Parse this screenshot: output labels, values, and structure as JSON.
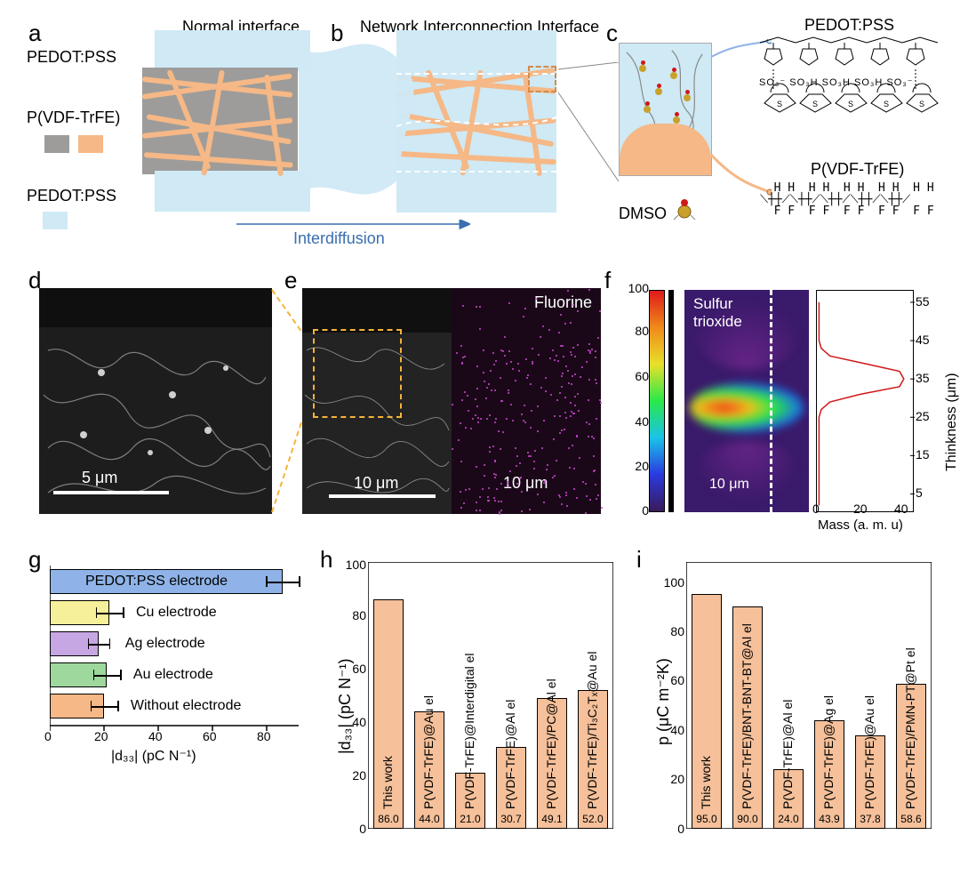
{
  "panels": {
    "a": {
      "letter": "a",
      "title": "Normal interface"
    },
    "b": {
      "letter": "b",
      "title": "Network Interconnection Interface"
    },
    "c": {
      "letter": "c"
    },
    "d": {
      "letter": "d",
      "scalebar": "5 μm"
    },
    "e": {
      "letter": "e",
      "scalebar1": "10 μm",
      "scalebar2": "10 μm",
      "eds_label": "Fluorine"
    },
    "f": {
      "letter": "f",
      "map_label": "Sulfur\ntrioxide",
      "map_scalebar": "10 μm",
      "cbar_ticks": [
        0,
        20,
        40,
        60,
        80,
        100
      ],
      "lp_xlabel": "Mass (a. m. u)",
      "lp_ylabel": "Thinkness (μm)",
      "lp_yticks": [
        5,
        15,
        25,
        35,
        45,
        55
      ],
      "lp_xticks": [
        0,
        20,
        40
      ],
      "lp_xlim": [
        0,
        45
      ],
      "lp_ylim": [
        0,
        58
      ],
      "lp_points": [
        [
          1,
          2
        ],
        [
          1,
          20
        ],
        [
          1,
          25
        ],
        [
          2,
          27
        ],
        [
          6,
          29
        ],
        [
          20,
          31
        ],
        [
          38,
          33
        ],
        [
          40,
          35
        ],
        [
          38,
          37
        ],
        [
          22,
          39
        ],
        [
          6,
          41
        ],
        [
          2,
          43
        ],
        [
          1,
          45
        ],
        [
          1,
          55
        ]
      ]
    },
    "g": {
      "letter": "g",
      "xlabel": "|d₃₃| (pC N⁻¹)",
      "xticks": [
        0,
        20,
        40,
        60,
        80
      ],
      "xlim": [
        0,
        92
      ],
      "bars": [
        {
          "k": "pedot",
          "label": "PEDOT:PSS electrode",
          "value": 86,
          "err": 6,
          "color": "#8fb3e8"
        },
        {
          "k": "cu",
          "label": "Cu electrode",
          "value": 22,
          "err": 5,
          "color": "#f6f09a"
        },
        {
          "k": "ag",
          "label": "Ag electrode",
          "value": 18,
          "err": 4,
          "color": "#c7a7e3"
        },
        {
          "k": "au",
          "label": "Au electrode",
          "value": 21,
          "err": 5,
          "color": "#9ed89c"
        },
        {
          "k": "none",
          "label": "Without electrode",
          "value": 20,
          "err": 5,
          "color": "#f5b886"
        }
      ]
    },
    "h": {
      "letter": "h",
      "ylabel": "|d₃₃| (pC N⁻¹)",
      "yticks": [
        0,
        20,
        40,
        60,
        80,
        100
      ],
      "ylim": [
        0,
        100
      ],
      "bar_color": "#f5c09a",
      "bars": [
        {
          "k": "tw",
          "label": "This work",
          "value": 86.0,
          "vtxt": "86.0"
        },
        {
          "k": "au",
          "label": "P(VDF-TrFE)@Au el",
          "value": 44.0,
          "vtxt": "44.0"
        },
        {
          "k": "idt",
          "label": "P(VDF-TrFE)@Interdigital el",
          "value": 21.0,
          "vtxt": "21.0"
        },
        {
          "k": "al",
          "label": "P(VDF-TrFE)@Al el",
          "value": 30.7,
          "vtxt": "30.7"
        },
        {
          "k": "pc",
          "label": "P(VDF-TrFE)/PC@Al el",
          "value": 49.1,
          "vtxt": "49.1"
        },
        {
          "k": "mx",
          "label": "P(VDF-TrFE)/Ti₃C₂Tₓ@Au el",
          "value": 52.0,
          "vtxt": "52.0"
        }
      ]
    },
    "i": {
      "letter": "i",
      "ylabel": "p (μC m⁻²K)",
      "yticks": [
        0,
        20,
        40,
        60,
        80,
        100
      ],
      "ylim": [
        0,
        108
      ],
      "bar_color": "#f5c09a",
      "bars": [
        {
          "k": "tw",
          "label": "This work",
          "value": 95.0,
          "vtxt": "95.0"
        },
        {
          "k": "bnt",
          "label": "P(VDF-TrFE)/BNT-BNT-BT@Al el",
          "value": 90.0,
          "vtxt": "90.0"
        },
        {
          "k": "al",
          "label": "P(VDF-TrFE)@Al el",
          "value": 24.0,
          "vtxt": "24.0"
        },
        {
          "k": "ag",
          "label": "P(VDF-TrFE)@Ag el",
          "value": 43.9,
          "vtxt": "43.9"
        },
        {
          "k": "au",
          "label": "P(VDF-TrFE)@Au el",
          "value": 37.8,
          "vtxt": "37.8"
        },
        {
          "k": "pmn",
          "label": "P(VDF-TrFE)/PMN-PT@Pt el",
          "value": 58.6,
          "vtxt": "58.6"
        }
      ]
    }
  },
  "labels": {
    "pedot_top": "PEDOT:PSS",
    "pvdf": "P(VDF-TrFE)",
    "pedot_bot": "PEDOT:PSS",
    "interdiffusion": "Interdiffusion",
    "pedotpss_title": "PEDOT:PSS",
    "pvdf_title": "P(VDF-TrFE)",
    "dmso": "DMSO"
  },
  "chem": {
    "pedotpss": "   SO₃⁻   SO₃H  SO₃H  SO₃H  SO₃⁻",
    "pvdf": "  H H  H H  H H  H H  H H\n⟍┼┼⟋⟍┼┼⟋⟍┼┼⟋⟍┼┼⟋⟍┼┼⟋\n  F F  F F  F F  F F  F F"
  },
  "colors": {
    "pedot": "#cfe9f5",
    "pvdf_bg": "#9d9c9a",
    "fiber": "#f5b886",
    "accent_blue": "#3a6fb0",
    "sem_bg": "#222222"
  }
}
